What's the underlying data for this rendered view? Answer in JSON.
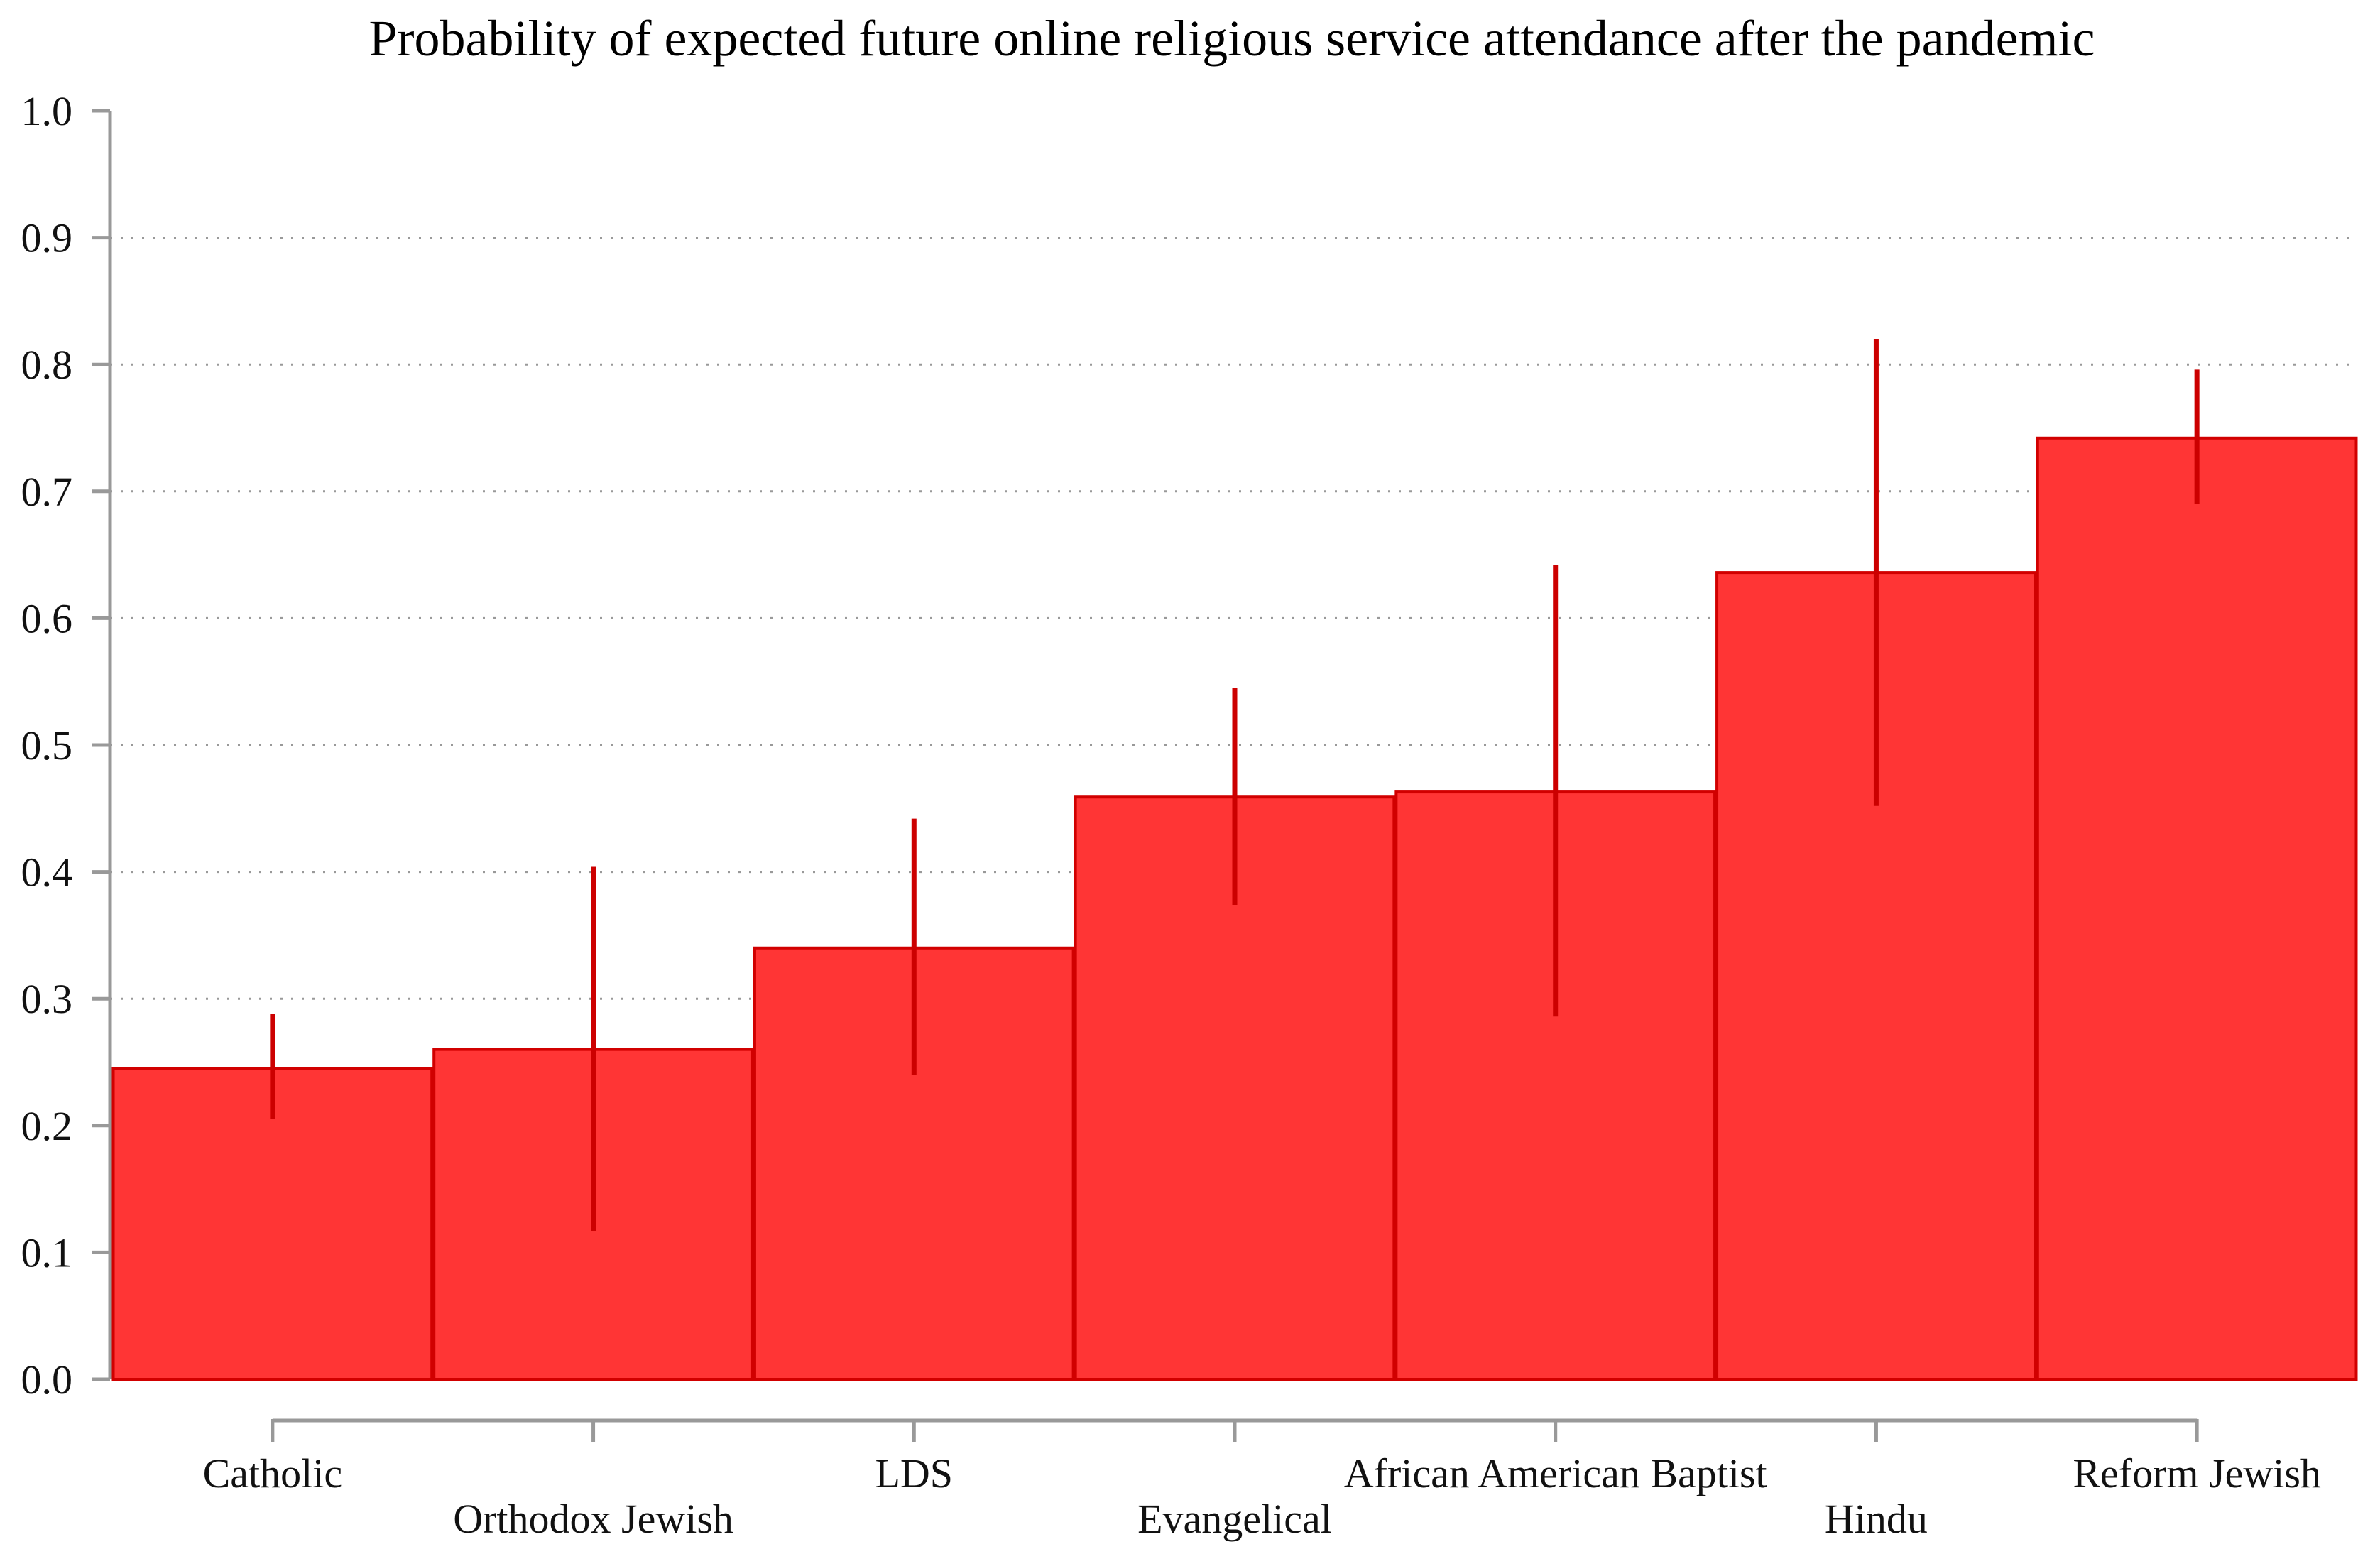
{
  "chart_data": {
    "type": "bar",
    "title": "Probability of expected future online religious service attendance after the pandemic",
    "xlabel": "",
    "ylabel": "",
    "ylim": [
      0,
      1.0
    ],
    "yticks": [
      "0.0",
      "0.1",
      "0.2",
      "0.3",
      "0.4",
      "0.5",
      "0.6",
      "0.7",
      "0.8",
      "0.9",
      "1.0"
    ],
    "grid": true,
    "categories": [
      "Catholic",
      "Orthodox Jewish",
      "LDS",
      "Evangelical",
      "African American Baptist",
      "Hindu",
      "Reform Jewish"
    ],
    "values": [
      0.245,
      0.26,
      0.34,
      0.459,
      0.463,
      0.636,
      0.742
    ],
    "error_low": [
      0.205,
      0.117,
      0.24,
      0.374,
      0.286,
      0.452,
      0.69
    ],
    "error_high": [
      0.288,
      0.404,
      0.442,
      0.545,
      0.642,
      0.82,
      0.796
    ],
    "colors": {
      "bar_fill": "#ff3535",
      "bar_edge": "#d10000",
      "error_bar": "#cc0000",
      "axis": "#999999",
      "grid": "#999999",
      "text": "#111111"
    }
  }
}
